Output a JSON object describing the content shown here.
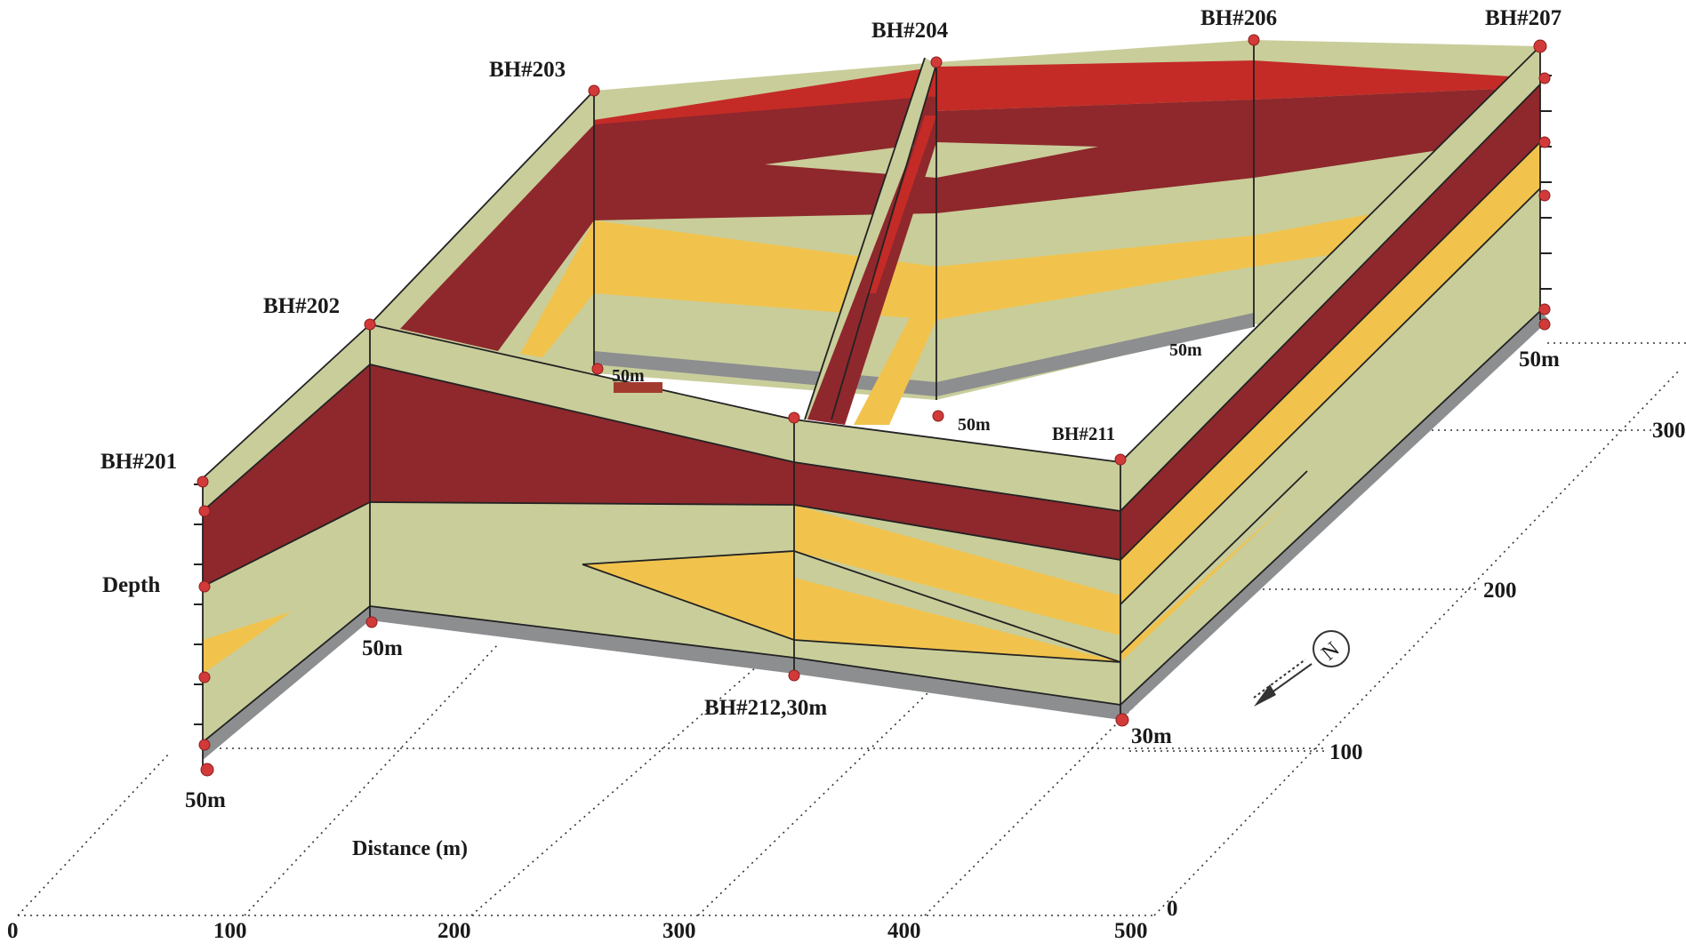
{
  "colors": {
    "top_soil": "#c9cd9a",
    "dark_red_clay": "#8e282c",
    "red_clay": "#c42b27",
    "yellow_sand": "#f1c34d",
    "base": "#8c8e90",
    "borehole_marker": "#d23a3a"
  },
  "boreholes": {
    "bh201": "BH#201",
    "bh202": "BH#202",
    "bh203": "BH#203",
    "bh204": "BH#204",
    "bh206": "BH#206",
    "bh207": "BH#207",
    "bh211": "BH#211",
    "bh212": "BH#212,30m"
  },
  "depth_labels": {
    "d201": "50m",
    "d202": "50m",
    "d203": "50m",
    "d204": "50m",
    "d206": "50m",
    "d207": "50m",
    "d211": "30m"
  },
  "axes": {
    "vertical_label": "Depth",
    "x_label": "Distance (m)",
    "x_ticks": [
      "0",
      "100",
      "200",
      "300",
      "400",
      "500"
    ],
    "y_ticks": [
      "0",
      "100",
      "200",
      "300"
    ]
  },
  "north_arrow": {
    "symbol": "N",
    "icon": "north-arrow-icon"
  }
}
